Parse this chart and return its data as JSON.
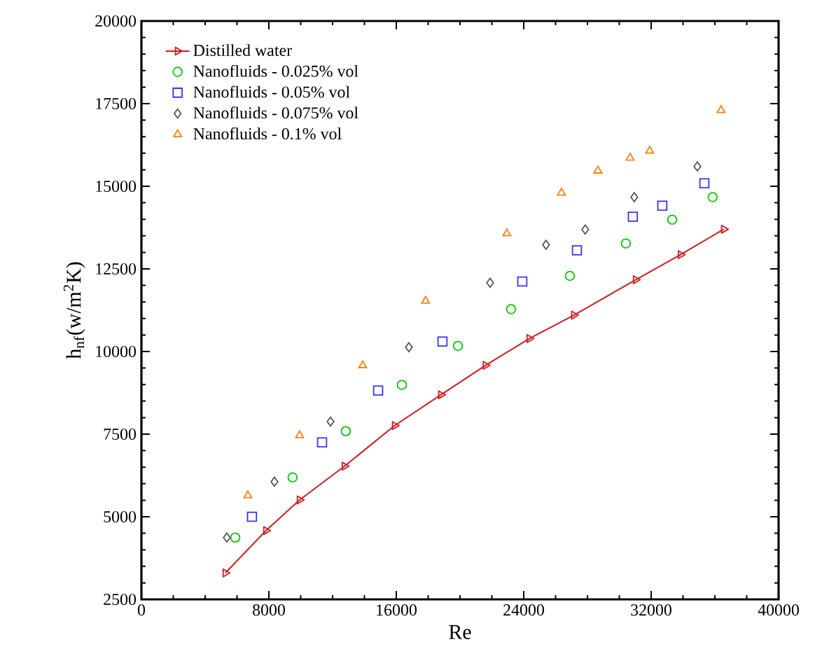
{
  "chart_data": {
    "type": "scatter",
    "xlabel": "Re",
    "ylabel": "h$_{nf}$(w/m$^{2}$K)",
    "xlim": [
      0,
      40000
    ],
    "xticks": [
      0,
      8000,
      16000,
      24000,
      32000,
      40000
    ],
    "ylim": [
      2500,
      20000
    ],
    "yticks": [
      2500,
      5000,
      7500,
      10000,
      12500,
      15000,
      17500,
      20000
    ],
    "legend": "top left",
    "grid": false,
    "series": [
      {
        "name": "Distilled water",
        "type": "line",
        "marker": "triangle",
        "line_style": "solid",
        "color": "#d7191c",
        "x": [
          5270,
          7820,
          9930,
          12750,
          15900,
          18800,
          21600,
          24350,
          27150,
          31030,
          33850,
          36560
        ],
        "values": [
          3300,
          4580,
          5510,
          6530,
          7760,
          8690,
          9580,
          10390,
          11100,
          12170,
          12930,
          13700
        ]
      },
      {
        "name": "Nanofluids - 0.025% vol",
        "marker": "circle",
        "color": "#00cc00",
        "x": [
          5890,
          9490,
          12830,
          16350,
          19870,
          23210,
          26900,
          30410,
          33320,
          35860
        ],
        "values": [
          4370,
          6190,
          7590,
          8990,
          10170,
          11280,
          12290,
          13270,
          13990,
          14670
        ]
      },
      {
        "name": "Nanofluids - 0.05% vol",
        "marker": "square",
        "color": "#3333ff",
        "x": [
          6940,
          11340,
          14860,
          18900,
          23910,
          27340,
          30850,
          32700,
          35340
        ],
        "values": [
          5000,
          7250,
          8820,
          10300,
          12120,
          13060,
          14080,
          14410,
          15090
        ]
      },
      {
        "name": "Nanofluids - 0.075% vol",
        "marker": "diamond",
        "color": "#555555",
        "x": [
          5360,
          8350,
          11870,
          16790,
          21890,
          25400,
          27860,
          30940,
          34900
        ],
        "values": [
          4370,
          6060,
          7880,
          10130,
          12080,
          13230,
          13690,
          14670,
          15600
        ]
      },
      {
        "name": "Nanofluids - 0.1% vol",
        "marker": "triangle",
        "color": "#ff7f0e",
        "x": [
          6680,
          9930,
          13890,
          17840,
          22940,
          26370,
          28660,
          30680,
          31910,
          36390
        ],
        "values": [
          5640,
          7460,
          9580,
          11530,
          13570,
          14800,
          15470,
          15860,
          16070,
          17300
        ]
      }
    ]
  }
}
